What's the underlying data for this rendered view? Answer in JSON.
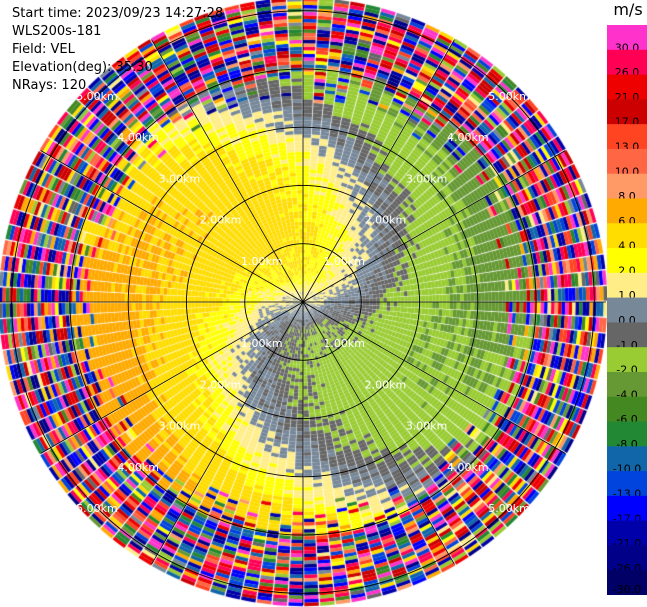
{
  "header": {
    "start_time": "Start time: 2023/09/23 14:27:28",
    "instrument": "WLS200s-181",
    "field": "Field: VEL",
    "elevation": "Elevation(deg): 35.30",
    "nrays": "NRays: 120"
  },
  "chart_data": {
    "type": "heatmap",
    "projection": "polar-ppi",
    "field": "VEL",
    "nrays": 120,
    "elevation_deg": 35.3,
    "range_rings": [
      {
        "label": "1.00km",
        "value_km": 1.0
      },
      {
        "label": "2.00km",
        "value_km": 2.0
      },
      {
        "label": "3.00km",
        "value_km": 3.0
      },
      {
        "label": "4.00km",
        "value_km": 4.0
      },
      {
        "label": "5.00km",
        "value_km": 5.0
      }
    ],
    "ring_label_bearings_deg": [
      315,
      45,
      135,
      225
    ],
    "max_range_km": 5.2,
    "colorbar": {
      "unit": "m/s",
      "ticks": [
        "30.0",
        "26.0",
        "21.0",
        "17.0",
        "13.0",
        "10.0",
        "8.0",
        "6.0",
        "4.0",
        "2.0",
        "1.0",
        "0.0",
        "-1.0",
        "-2.0",
        "-4.0",
        "-6.0",
        "-8.0",
        "-10.0",
        "-13.0",
        "-17.0",
        "-21.0",
        "-26.0",
        "-30.0"
      ],
      "colors": [
        "#ff33cc",
        "#ff0055",
        "#ee0000",
        "#cc0000",
        "#ff4422",
        "#ff6644",
        "#ff9966",
        "#ffaa00",
        "#ffdd00",
        "#ffff00",
        "#ffee88",
        "#778899",
        "#666666",
        "#99cc33",
        "#669933",
        "#448822",
        "#228833",
        "#1166aa",
        "#0044dd",
        "#0000ff",
        "#0000aa",
        "#000088",
        "#000066"
      ]
    },
    "velocity_profile": {
      "range_km": [
        0.2,
        0.5,
        1.0,
        1.5,
        2.0,
        2.5,
        3.0,
        3.5,
        4.0
      ],
      "approach_dir_deg": 0,
      "peak_speed_ms": [
        0.5,
        2.0,
        2.5,
        3.0,
        3.5,
        4.0,
        4.5,
        5.0,
        5.5
      ]
    },
    "noisy_beyond_km": 4.0
  }
}
